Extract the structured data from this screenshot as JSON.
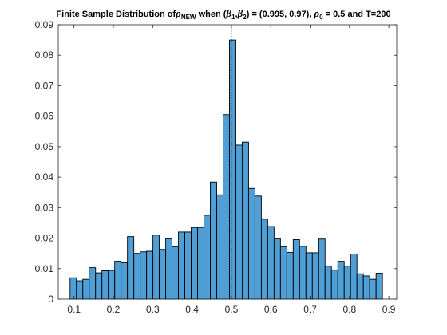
{
  "chart_data": {
    "type": "bar",
    "title": {
      "prefix": "Finite Sample Distribution of",
      "rho": "ρ",
      "rho_sub": "NEW",
      "when": " when (",
      "beta1": "β",
      "beta1_sub": "1",
      "comma": ",",
      "beta2": "β",
      "beta2_sub": "2",
      "mid": ") = (0.995, 0.97), ",
      "rho0": "ρ",
      "rho0_sub": "0",
      "suffix": " = 0.5 and T=200"
    },
    "xlabel": "",
    "ylabel": "",
    "xlim": [
      0.06,
      0.92
    ],
    "ylim": [
      0,
      0.09
    ],
    "xticks": [
      "0.1",
      "0.2",
      "0.3",
      "0.4",
      "0.5",
      "0.6",
      "0.7",
      "0.8",
      "0.9"
    ],
    "yticks": [
      "0",
      "0.01",
      "0.02",
      "0.03",
      "0.04",
      "0.05",
      "0.06",
      "0.07",
      "0.08",
      "0.09"
    ],
    "bin_edges_start": 0.09,
    "bin_width": 0.0162,
    "values": [
      0.007,
      0.006,
      0.0065,
      0.0103,
      0.0086,
      0.0093,
      0.0094,
      0.0124,
      0.0119,
      0.0205,
      0.015,
      0.0155,
      0.0157,
      0.021,
      0.0163,
      0.0198,
      0.0172,
      0.022,
      0.022,
      0.0235,
      0.0235,
      0.0275,
      0.0384,
      0.0342,
      0.0605,
      0.085,
      0.0505,
      0.0515,
      0.0363,
      0.0338,
      0.0262,
      0.0238,
      0.0198,
      0.0172,
      0.0153,
      0.0195,
      0.0173,
      0.0152,
      0.0152,
      0.0197,
      0.0108,
      0.0095,
      0.0124,
      0.0108,
      0.0148,
      0.0083,
      0.0076,
      0.0065,
      0.0085
    ],
    "reference_line_x": 0.5,
    "colors": {
      "bar_fill": "#4f9fd6",
      "bar_edge": "#000000"
    },
    "grid": false,
    "legend": "none"
  }
}
